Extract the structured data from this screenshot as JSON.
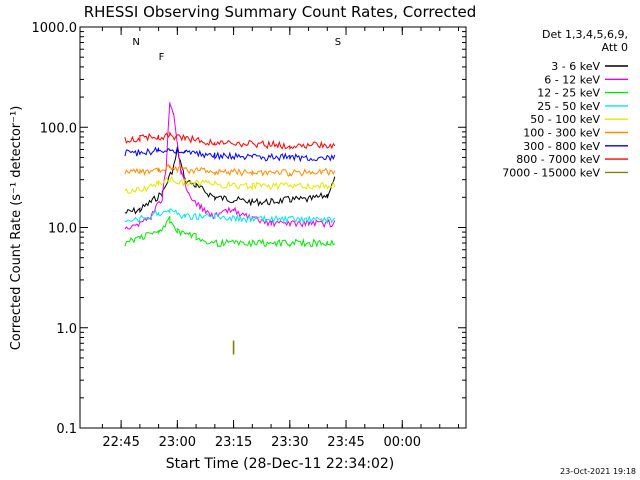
{
  "chart_data": {
    "type": "line",
    "title": "RHESSI Observing Summary Count Rates, Corrected",
    "xlabel": "Start Time (28-Dec-11 22:34:02)",
    "ylabel": "Corrected Count Rate (s⁻¹ detector⁻¹)",
    "y_scale": "log",
    "ylim": [
      0.1,
      1000
    ],
    "xlim": [
      "22:34:02",
      "00:17"
    ],
    "x_ticks": [
      "22:45",
      "23:00",
      "23:15",
      "23:30",
      "23:45",
      "00:00"
    ],
    "y_ticks": [
      "0.1",
      "1.0",
      "10.0",
      "100.0",
      "1000.0"
    ],
    "legend": {
      "header": "Det 1,3,4,5,6,9,",
      "attenuator": "Att 0",
      "placement": "right"
    },
    "series": [
      {
        "name": "3 - 6 keV",
        "color": "#000000",
        "points": [
          [
            "22:46",
            14
          ],
          [
            "22:50",
            15
          ],
          [
            "22:53",
            18
          ],
          [
            "22:56",
            22
          ],
          [
            "22:59",
            40
          ],
          [
            "23:00",
            60
          ],
          [
            "23:02",
            30
          ],
          [
            "23:05",
            26
          ],
          [
            "23:10",
            20
          ],
          [
            "23:15",
            19
          ],
          [
            "23:20",
            18
          ],
          [
            "23:25",
            18
          ],
          [
            "23:30",
            19
          ],
          [
            "23:35",
            19
          ],
          [
            "23:40",
            21
          ],
          [
            "23:42",
            30
          ]
        ]
      },
      {
        "name": "6 - 12 keV",
        "color": "#e600e6",
        "points": [
          [
            "22:46",
            10
          ],
          [
            "22:50",
            11
          ],
          [
            "22:53",
            13
          ],
          [
            "22:56",
            20
          ],
          [
            "22:57",
            40
          ],
          [
            "22:58",
            180
          ],
          [
            "22:59",
            130
          ],
          [
            "23:00",
            70
          ],
          [
            "23:01",
            35
          ],
          [
            "23:03",
            22
          ],
          [
            "23:06",
            16
          ],
          [
            "23:10",
            13
          ],
          [
            "23:15",
            15
          ],
          [
            "23:20",
            12
          ],
          [
            "23:25",
            11
          ],
          [
            "23:30",
            11
          ],
          [
            "23:35",
            11
          ],
          [
            "23:40",
            11
          ],
          [
            "23:42",
            11
          ]
        ]
      },
      {
        "name": "12 - 25 keV",
        "color": "#00e600",
        "points": [
          [
            "22:46",
            7
          ],
          [
            "22:50",
            8
          ],
          [
            "22:55",
            9
          ],
          [
            "22:58",
            12
          ],
          [
            "23:00",
            9
          ],
          [
            "23:05",
            8
          ],
          [
            "23:10",
            7
          ],
          [
            "23:20",
            7
          ],
          [
            "23:30",
            7
          ],
          [
            "23:40",
            7
          ],
          [
            "23:42",
            7
          ]
        ]
      },
      {
        "name": "25 - 50 keV",
        "color": "#00e6e6",
        "points": [
          [
            "22:46",
            11
          ],
          [
            "22:50",
            12
          ],
          [
            "22:55",
            14
          ],
          [
            "22:58",
            15
          ],
          [
            "23:02",
            13
          ],
          [
            "23:10",
            13
          ],
          [
            "23:20",
            12
          ],
          [
            "23:30",
            12
          ],
          [
            "23:40",
            12
          ],
          [
            "23:42",
            12
          ]
        ]
      },
      {
        "name": "50 - 100 keV",
        "color": "#e6e600",
        "points": [
          [
            "22:46",
            23
          ],
          [
            "22:50",
            24
          ],
          [
            "22:55",
            27
          ],
          [
            "22:58",
            30
          ],
          [
            "23:02",
            28
          ],
          [
            "23:10",
            27
          ],
          [
            "23:20",
            26
          ],
          [
            "23:30",
            26
          ],
          [
            "23:40",
            26
          ],
          [
            "23:42",
            27
          ]
        ]
      },
      {
        "name": "100 - 300 keV",
        "color": "#ff8c00",
        "points": [
          [
            "22:46",
            35
          ],
          [
            "22:50",
            36
          ],
          [
            "22:55",
            38
          ],
          [
            "22:58",
            40
          ],
          [
            "23:02",
            38
          ],
          [
            "23:10",
            36
          ],
          [
            "23:20",
            35
          ],
          [
            "23:30",
            35
          ],
          [
            "23:40",
            36
          ],
          [
            "23:42",
            37
          ]
        ]
      },
      {
        "name": "300 - 800 keV",
        "color": "#0000ff",
        "points": [
          [
            "22:46",
            55
          ],
          [
            "22:50",
            56
          ],
          [
            "22:55",
            58
          ],
          [
            "22:58",
            60
          ],
          [
            "23:02",
            57
          ],
          [
            "23:10",
            52
          ],
          [
            "23:20",
            50
          ],
          [
            "23:30",
            50
          ],
          [
            "23:40",
            50
          ],
          [
            "23:42",
            50
          ]
        ]
      },
      {
        "name": "800 - 7000 keV",
        "color": "#ff0000",
        "points": [
          [
            "22:46",
            75
          ],
          [
            "22:50",
            78
          ],
          [
            "22:55",
            80
          ],
          [
            "22:58",
            82
          ],
          [
            "23:02",
            78
          ],
          [
            "23:10",
            70
          ],
          [
            "23:20",
            68
          ],
          [
            "23:30",
            66
          ],
          [
            "23:40",
            66
          ],
          [
            "23:42",
            68
          ]
        ]
      },
      {
        "name": "7000 - 15000 keV",
        "color": "#808000",
        "points": [
          [
            "23:15",
            0.62
          ]
        ]
      }
    ],
    "annotations": [
      {
        "label": "N",
        "color": "#00e6e6",
        "at": "22:48"
      },
      {
        "label": "F",
        "color": "#ff0000",
        "at": "22:55"
      },
      {
        "label": "S",
        "color": "#ff8c00",
        "at": "23:42"
      }
    ]
  },
  "timestamp": "23-Oct-2021 19:18"
}
